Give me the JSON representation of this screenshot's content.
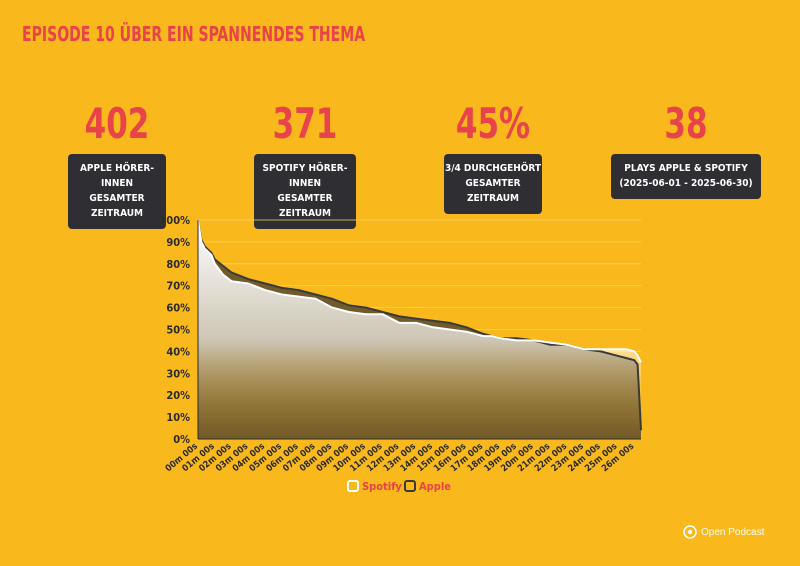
{
  "title": "EPISODE 10 ÜBER EIN SPANNENDES THEMA",
  "stats": [
    {
      "value": "402",
      "line1": "APPLE HÖRER-INNEN",
      "line2": "GESAMTER ZEITRAUM"
    },
    {
      "value": "371",
      "line1": "SPOTIFY HÖRER-INNEN",
      "line2": "GESAMTER ZEITRAUM"
    },
    {
      "value": "45%",
      "line1": "3/4 DURCHGEHÖRT",
      "line2": "GESAMTER ZEITRAUM"
    },
    {
      "value": "38",
      "line1": "PLAYS APPLE & SPOTIFY",
      "line2": "(2025-06-01 - 2025-06-30)"
    }
  ],
  "brand": {
    "name": "Open Podcast"
  },
  "colors": {
    "background": "#F9B81B",
    "accent": "#E8434B",
    "box": "#2E2E33",
    "spotify": "#FFFFFF",
    "apple": "#3A3A3A"
  },
  "chart_data": {
    "type": "area",
    "title": "",
    "xlabel": "",
    "ylabel": "",
    "ylim": [
      0,
      100
    ],
    "yticks": [
      "0%",
      "10%",
      "20%",
      "30%",
      "40%",
      "50%",
      "60%",
      "70%",
      "80%",
      "90%",
      "100%"
    ],
    "xticks": [
      "00m 00s",
      "01m 00s",
      "02m 00s",
      "03m 00s",
      "04m 00s",
      "05m 00s",
      "06m 00s",
      "07m 00s",
      "08m 00s",
      "09m 00s",
      "10m 00s",
      "11m 00s",
      "12m 00s",
      "13m 00s",
      "14m 00s",
      "15m 00s",
      "16m 00s",
      "17m 00s",
      "18m 00s",
      "19m 00s",
      "20m 00s",
      "21m 00s",
      "22m 00s",
      "23m 00s",
      "24m 00s",
      "25m 00s",
      "26m 00s"
    ],
    "x_minutes": [
      0,
      0.2,
      0.4,
      0.8,
      1,
      1.5,
      2,
      3,
      4,
      5,
      6,
      7,
      8,
      9,
      10,
      11,
      12,
      13,
      14,
      15,
      16,
      17,
      17.5,
      18,
      19,
      20,
      21,
      22,
      23,
      24,
      25,
      25.5,
      26,
      26.2,
      26.4
    ],
    "series": [
      {
        "name": "Spotify",
        "values": [
          100,
          90,
          87,
          84,
          80,
          75,
          72,
          71,
          68,
          66,
          65,
          64,
          60,
          58,
          57,
          57,
          53,
          53,
          51,
          50,
          49,
          47,
          47,
          46,
          45,
          45,
          44,
          43,
          41,
          41,
          41,
          41,
          40,
          38,
          35
        ]
      },
      {
        "name": "Apple",
        "values": [
          100,
          91,
          88,
          85,
          82,
          79,
          76,
          73,
          71,
          69,
          68,
          66,
          64,
          61,
          60,
          58,
          56,
          55,
          54,
          53,
          51,
          48,
          47,
          46,
          46,
          45,
          43,
          43,
          41,
          40,
          38,
          37,
          36,
          34,
          4
        ]
      }
    ],
    "legend": "bottom-center",
    "grid": true
  }
}
